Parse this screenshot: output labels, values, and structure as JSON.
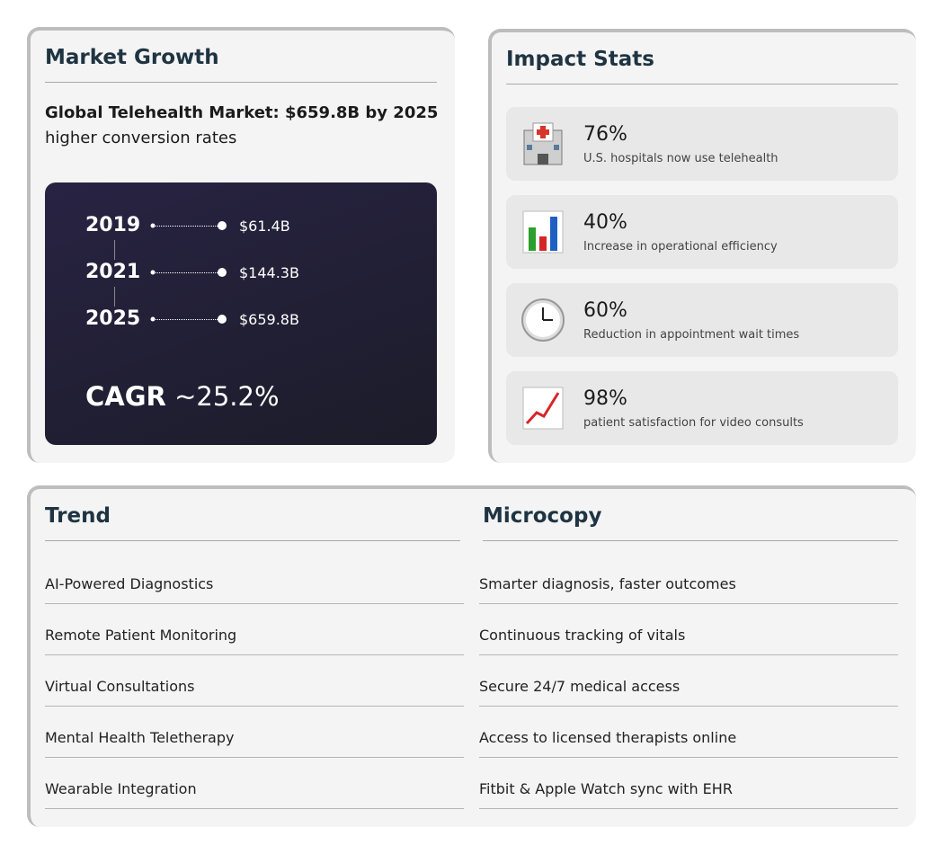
{
  "market": {
    "title": "Market Growth",
    "headline": "Global Telehealth Market: $659.8B by 2025",
    "subline": "higher conversion rates",
    "timeline": [
      {
        "year": "2019",
        "value": "$61.4B"
      },
      {
        "year": "2021",
        "value": "$144.3B"
      },
      {
        "year": "2025",
        "value": "$659.8B"
      }
    ],
    "cagr_label": "CAGR",
    "cagr_value": "~25.2%"
  },
  "impact": {
    "title": "Impact Stats",
    "stats": [
      {
        "value": "76%",
        "label": "U.S. hospitals now use telehealth"
      },
      {
        "value": "40%",
        "label": "Increase in operational efficiency"
      },
      {
        "value": "60%",
        "label": "Reduction in appointment wait times"
      },
      {
        "value": "98%",
        "label": "patient satisfaction for video consults"
      }
    ]
  },
  "table": {
    "headers": [
      "Trend",
      "Microcopy"
    ],
    "rows": [
      [
        "AI-Powered Diagnostics",
        "Smarter diagnosis, faster outcomes"
      ],
      [
        "Remote Patient Monitoring",
        "Continuous tracking of vitals"
      ],
      [
        "Virtual Consultations",
        "Secure 24/7 medical access"
      ],
      [
        "Mental Health Teletherapy",
        "Access to licensed therapists online"
      ],
      [
        "Wearable Integration",
        "Fitbit & Apple Watch sync with EHR"
      ]
    ]
  }
}
